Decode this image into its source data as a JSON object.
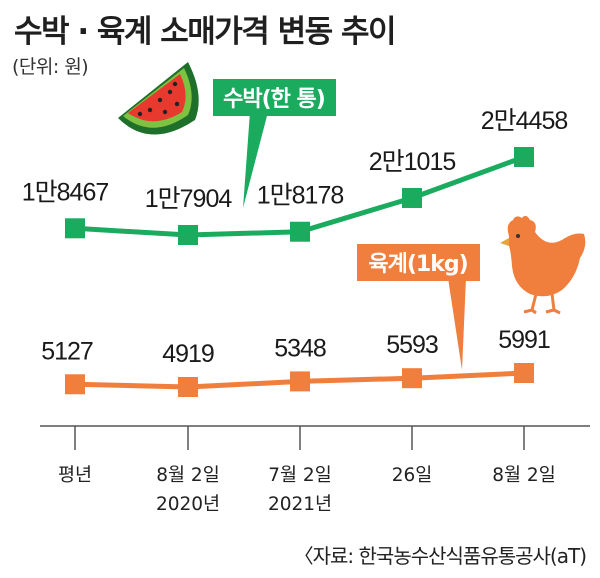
{
  "title": "수박 · 육계 소매가격 변동 추이",
  "unit_note": "(단위: 원)",
  "source": "〈자료: 한국농수산식품유통공사(aT)",
  "colors": {
    "watermelon": "#1aab5f",
    "chicken": "#f07e3c",
    "axis": "#555555",
    "tick_line": "#999999"
  },
  "chart_data": {
    "type": "line",
    "categories": [
      [
        "평년"
      ],
      [
        "8월 2일",
        "2020년"
      ],
      [
        "7월 2일",
        "2021년"
      ],
      [
        "26일"
      ],
      [
        "8월 2일"
      ]
    ],
    "series": [
      {
        "name": "수박(한 통)",
        "values": [
          18467,
          17904,
          18178,
          21015,
          24458
        ],
        "labels": [
          "1만8467",
          "1만7904",
          "1만8178",
          "2만1015",
          "2만4458"
        ]
      },
      {
        "name": "육계(1kg)",
        "values": [
          5127,
          4919,
          5348,
          5593,
          5991
        ],
        "labels": [
          "5127",
          "4919",
          "5348",
          "5593",
          "5991"
        ]
      }
    ],
    "legend": "callout-labels"
  }
}
